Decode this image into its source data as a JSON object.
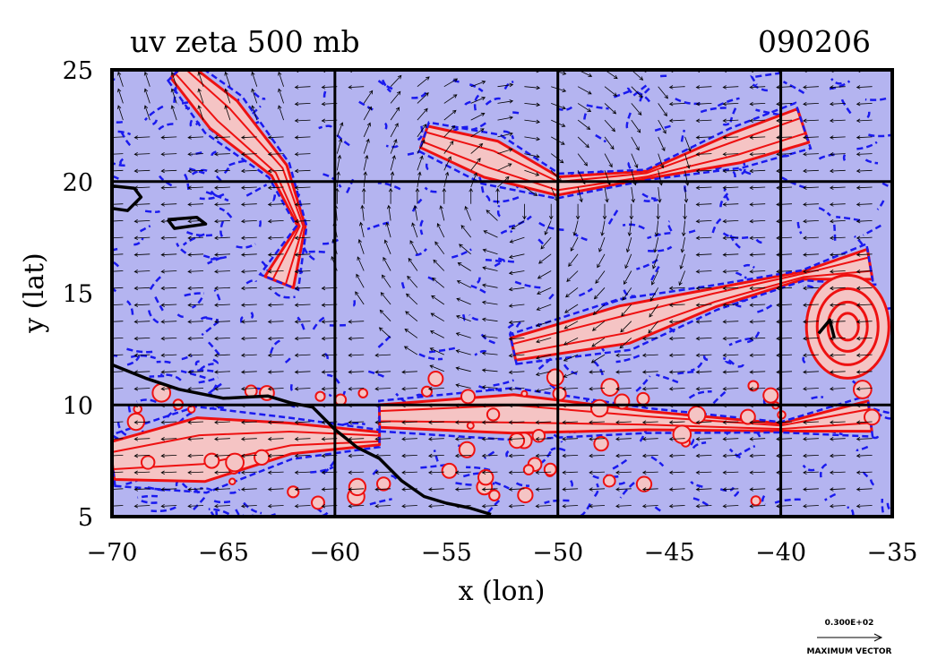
{
  "chart_data": {
    "type": "heatmap",
    "title": "uv zeta 500 mb",
    "date_label": "090206",
    "xlabel": "x (lon)",
    "ylabel": "y (lat)",
    "xlim": [
      -70,
      -35
    ],
    "ylim": [
      5,
      25
    ],
    "x_ticks": [
      -70,
      -65,
      -60,
      -55,
      -50,
      -45,
      -40,
      -35
    ],
    "x_tick_labels": [
      "−70",
      "−65",
      "−60",
      "−55",
      "−50",
      "−45",
      "−40",
      "−35"
    ],
    "y_ticks": [
      5,
      10,
      15,
      20,
      25
    ],
    "y_tick_labels": [
      "5",
      "10",
      "15",
      "20",
      "25"
    ],
    "grid_lon": [
      -60,
      -50,
      -40
    ],
    "grid_lat": [
      10,
      20
    ],
    "fields": [
      "vorticity (zeta) filled contours",
      "wind vectors (u, v)"
    ],
    "colors": {
      "positive_fill": "#f5c4c4",
      "positive_contour": "#ee1111",
      "negative_fill": "#b4b4f0",
      "negative_contour": "#1a1aee",
      "coastline": "#000000",
      "grid": "#000000"
    },
    "vorticity_features": [
      {
        "sign": "positive",
        "desc": "curved band",
        "points": [
          [
            -67,
            25
          ],
          [
            -65,
            23
          ],
          [
            -62.5,
            20.5
          ],
          [
            -61.5,
            18
          ],
          [
            -62.5,
            15.5
          ]
        ]
      },
      {
        "sign": "positive",
        "desc": "arc band north",
        "points": [
          [
            -56,
            22
          ],
          [
            -53,
            21
          ],
          [
            -50,
            19.8
          ],
          [
            -46,
            20.3
          ],
          [
            -42,
            21.5
          ],
          [
            -39,
            22.5
          ]
        ]
      },
      {
        "sign": "positive",
        "desc": "band to eastern vortex",
        "points": [
          [
            -52,
            12.5
          ],
          [
            -47,
            13.6
          ],
          [
            -43,
            14.8
          ],
          [
            -39,
            15.8
          ],
          [
            -36,
            16.3
          ]
        ]
      },
      {
        "sign": "positive",
        "desc": "southern band",
        "points": [
          [
            -58,
            9.5
          ],
          [
            -52,
            9.6
          ],
          [
            -46,
            9.3
          ],
          [
            -40,
            9.0
          ],
          [
            -36,
            9.5
          ]
        ]
      },
      {
        "sign": "positive",
        "desc": "southwest region",
        "points": [
          [
            -70,
            7.5
          ],
          [
            -66,
            8
          ],
          [
            -62,
            8.5
          ],
          [
            -58,
            8.5
          ]
        ]
      },
      {
        "sign": "positive",
        "desc": "east vortex",
        "points": [
          [
            -37,
            13.5
          ]
        ]
      }
    ],
    "coastlines": [
      [
        [
          -70,
          11.8
        ],
        [
          -68.5,
          11.2
        ],
        [
          -67,
          10.7
        ],
        [
          -65,
          10.3
        ],
        [
          -63,
          10.4
        ],
        [
          -62,
          10.1
        ],
        [
          -61,
          9.9
        ],
        [
          -60,
          8.9
        ],
        [
          -59,
          8.1
        ],
        [
          -58,
          7.6
        ],
        [
          -57,
          6.6
        ],
        [
          -56,
          5.9
        ],
        [
          -55,
          5.6
        ],
        [
          -54,
          5.4
        ],
        [
          -53,
          5.1
        ]
      ],
      [
        [
          -70,
          19.8
        ],
        [
          -69,
          19.7
        ],
        [
          -68.7,
          19.3
        ],
        [
          -69.3,
          18.7
        ],
        [
          -70,
          18.8
        ]
      ],
      [
        [
          -67.5,
          18.3
        ],
        [
          -66.2,
          18.4
        ],
        [
          -65.8,
          18.1
        ],
        [
          -67.2,
          17.9
        ],
        [
          -67.5,
          18.3
        ]
      ],
      [
        [
          -38.3,
          13.2
        ],
        [
          -37.8,
          13.8
        ],
        [
          -37.6,
          13.0
        ]
      ]
    ],
    "reference_vector": {
      "label": "0.300E+02",
      "caption": "MAXIMUM VECTOR"
    }
  }
}
